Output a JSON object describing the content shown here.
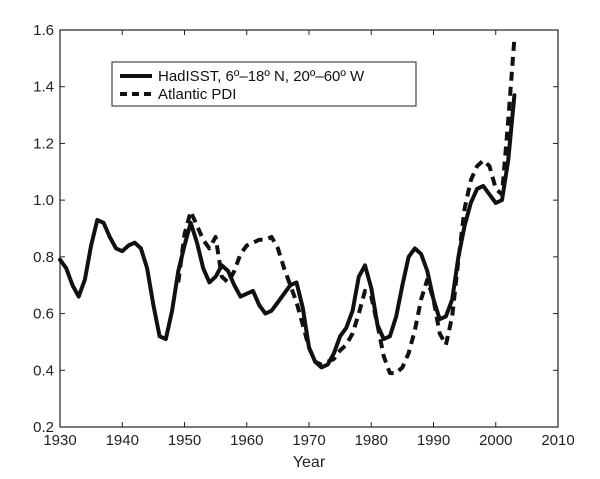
{
  "chart_data": {
    "type": "line",
    "title": "",
    "xlabel": "Year",
    "ylabel": "",
    "xlim": [
      1930,
      2010
    ],
    "ylim": [
      0.2,
      1.6
    ],
    "xticks": [
      1930,
      1940,
      1950,
      1960,
      1970,
      1980,
      1990,
      2000,
      2010
    ],
    "yticks": [
      0.2,
      0.4,
      0.6,
      0.8,
      1.0,
      1.2,
      1.4,
      1.6
    ],
    "xtick_labels": [
      "1930",
      "1940",
      "1950",
      "1960",
      "1970",
      "1980",
      "1990",
      "2000",
      "2010"
    ],
    "ytick_labels": [
      "0.2",
      "0.4",
      "0.6",
      "0.8",
      "1.0",
      "1.2",
      "1.4",
      "1.6"
    ],
    "grid": false,
    "legend_position": "top-left",
    "series": [
      {
        "name": "HadISST, 6º–18º N, 20º–60º W",
        "style": "solid",
        "color": "#111111",
        "x": [
          1930,
          1931,
          1932,
          1933,
          1934,
          1935,
          1936,
          1937,
          1938,
          1939,
          1940,
          1941,
          1942,
          1943,
          1944,
          1945,
          1946,
          1947,
          1948,
          1949,
          1950,
          1951,
          1952,
          1953,
          1954,
          1955,
          1956,
          1957,
          1958,
          1959,
          1960,
          1961,
          1962,
          1963,
          1964,
          1965,
          1966,
          1967,
          1968,
          1969,
          1970,
          1971,
          1972,
          1973,
          1974,
          1975,
          1976,
          1977,
          1978,
          1979,
          1980,
          1981,
          1982,
          1983,
          1984,
          1985,
          1986,
          1987,
          1988,
          1989,
          1990,
          1991,
          1992,
          1993,
          1994,
          1995,
          1996,
          1997,
          1998,
          1999,
          2000,
          2001,
          2002,
          2003
        ],
        "y": [
          0.79,
          0.76,
          0.7,
          0.66,
          0.72,
          0.84,
          0.93,
          0.92,
          0.87,
          0.83,
          0.82,
          0.84,
          0.85,
          0.83,
          0.76,
          0.63,
          0.52,
          0.51,
          0.61,
          0.75,
          0.84,
          0.92,
          0.85,
          0.76,
          0.71,
          0.73,
          0.77,
          0.75,
          0.7,
          0.66,
          0.67,
          0.68,
          0.63,
          0.6,
          0.61,
          0.64,
          0.67,
          0.7,
          0.71,
          0.62,
          0.48,
          0.43,
          0.41,
          0.42,
          0.46,
          0.52,
          0.55,
          0.61,
          0.73,
          0.77,
          0.69,
          0.56,
          0.51,
          0.52,
          0.59,
          0.7,
          0.8,
          0.83,
          0.81,
          0.75,
          0.65,
          0.58,
          0.59,
          0.65,
          0.8,
          0.91,
          0.99,
          1.04,
          1.05,
          1.02,
          0.99,
          1.0,
          1.14,
          1.37
        ]
      },
      {
        "name": "Atlantic PDI",
        "style": "dashed",
        "color": "#111111",
        "x": [
          1949,
          1950,
          1951,
          1952,
          1953,
          1954,
          1955,
          1956,
          1957,
          1958,
          1959,
          1960,
          1961,
          1962,
          1963,
          1964,
          1965,
          1966,
          1967,
          1968,
          1969,
          1970,
          1971,
          1972,
          1973,
          1974,
          1975,
          1976,
          1977,
          1978,
          1979,
          1980,
          1981,
          1982,
          1983,
          1984,
          1985,
          1986,
          1987,
          1988,
          1989,
          1990,
          1991,
          1992,
          1993,
          1994,
          1995,
          1996,
          1997,
          1998,
          1999,
          2000,
          2001,
          2002,
          2003
        ],
        "y": [
          0.71,
          0.88,
          0.96,
          0.91,
          0.86,
          0.83,
          0.87,
          0.73,
          0.71,
          0.75,
          0.81,
          0.84,
          0.85,
          0.86,
          0.86,
          0.87,
          0.83,
          0.76,
          0.7,
          0.64,
          0.56,
          0.48,
          0.43,
          0.42,
          0.43,
          0.44,
          0.47,
          0.49,
          0.53,
          0.6,
          0.68,
          0.66,
          0.56,
          0.45,
          0.39,
          0.39,
          0.41,
          0.46,
          0.54,
          0.65,
          0.72,
          0.65,
          0.53,
          0.49,
          0.59,
          0.79,
          0.97,
          1.07,
          1.12,
          1.14,
          1.12,
          1.04,
          1.02,
          1.28,
          1.57
        ]
      }
    ]
  }
}
